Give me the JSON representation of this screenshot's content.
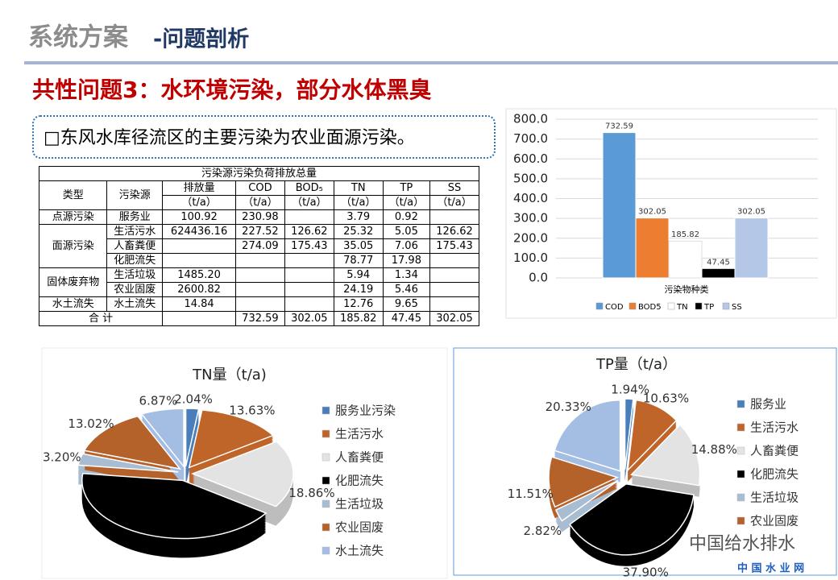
{
  "header": {
    "title_gray": "系统方案",
    "title_blue": "-问题剖析"
  },
  "headline": "共性问题3：水环境污染，部分水体黑臭",
  "bullet": "□东风水库径流区的主要污染为农业面源污染。",
  "table": {
    "title": "污染源污染负荷排放总量",
    "header": [
      "类型",
      "污染源",
      "排放量",
      "COD",
      "BOD₅",
      "TN",
      "TP",
      "SS"
    ],
    "units": [
      "（t/a）",
      "（t/a）",
      "（t/a）",
      "（t/a）",
      "（t/a）",
      "（t/a）"
    ],
    "groups": [
      {
        "type": "点源污染",
        "rows": [
          [
            "服务业",
            "100.92",
            "230.98",
            null,
            "3.79",
            "0.92",
            null
          ]
        ]
      },
      {
        "type": "面源污染",
        "rows": [
          [
            "生活污水",
            "624436.16",
            "227.52",
            "126.62",
            "25.32",
            "5.05",
            "126.62"
          ],
          [
            "人畜粪便",
            null,
            "274.09",
            "175.43",
            "35.05",
            "7.06",
            "175.43"
          ],
          [
            "化肥流失",
            null,
            null,
            null,
            "78.77",
            "17.98",
            null
          ]
        ]
      },
      {
        "type": "固体废弃物",
        "rows": [
          [
            "生活垃圾",
            "1485.20",
            null,
            null,
            "5.94",
            "1.34",
            null
          ],
          [
            "农业固废",
            "2600.82",
            null,
            null,
            "24.19",
            "5.46",
            null
          ]
        ]
      },
      {
        "type": "水土流失",
        "rows": [
          [
            "水土流失",
            "14.84",
            null,
            null,
            "12.76",
            "9.65",
            null
          ]
        ]
      }
    ],
    "total": {
      "label": "合 计",
      "values": [
        null,
        "732.59",
        "302.05",
        "185.82",
        "47.45",
        "302.05"
      ]
    }
  },
  "chart_data": [
    {
      "type": "bar",
      "x_label": "污染物种类",
      "ylim": [
        0,
        800
      ],
      "yticks": [
        {
          "value": 0,
          "label": "0.0"
        },
        {
          "value": 100,
          "label": "100.0"
        },
        {
          "value": 200,
          "label": "200.0"
        },
        {
          "value": 300,
          "label": "300.0"
        },
        {
          "value": 400,
          "label": "400.0"
        },
        {
          "value": 500,
          "label": "500.0"
        },
        {
          "value": 600,
          "label": "600.0"
        },
        {
          "value": 700,
          "label": "700.0"
        },
        {
          "value": 800,
          "label": "800.0"
        }
      ],
      "grid": true,
      "series": [
        {
          "name": "COD",
          "color": "#5b9bd5",
          "values": [
            732.59
          ]
        },
        {
          "name": "BOD5",
          "color": "#ed7d31",
          "values": [
            302.05
          ]
        },
        {
          "name": "TN",
          "color": "#ffffff",
          "values": [
            185.82
          ]
        },
        {
          "name": "TP",
          "color": "#000000",
          "values": [
            47.45
          ]
        },
        {
          "name": "SS",
          "color": "#b4c7e7",
          "values": [
            302.05
          ]
        }
      ]
    },
    {
      "type": "pie",
      "title": "TN量（t/a)",
      "categories": [
        "服务业污染",
        "生活污水",
        "人畜粪便",
        "化肥流失",
        "生活垃圾",
        "农业固废",
        "水土流失"
      ],
      "values": [
        2.04,
        13.63,
        18.86,
        42.38,
        3.2,
        13.02,
        6.87
      ],
      "value_labels": [
        "2.04%",
        "13.63%",
        "18.86%",
        null,
        "3.20%",
        "13.02%",
        "6.87%"
      ],
      "colors": [
        "#4a7ebb",
        "#c0652a",
        "#e3e3e3",
        "#000000",
        "#a8bcd2",
        "#b5622a",
        "#a3bde3"
      ]
    },
    {
      "type": "pie",
      "title": "TP量（t/a）",
      "categories": [
        "服务业",
        "生活污水",
        "人畜粪便",
        "化肥流失",
        "生活垃圾",
        "农业固废",
        null
      ],
      "values": [
        1.94,
        10.63,
        14.88,
        37.9,
        2.82,
        11.51,
        20.33
      ],
      "value_labels": [
        "1.94%",
        "10.63%",
        "14.88%",
        "37.90%",
        "2.82%",
        "11.51%",
        "20.33%"
      ],
      "colors": [
        "#4a7ebb",
        "#c0652a",
        "#e3e3e3",
        "#000000",
        "#a8bcd2",
        "#b5622a",
        "#a3bde3"
      ]
    }
  ],
  "watermark": "中国给水排水",
  "site": "中 国 水 业 网"
}
